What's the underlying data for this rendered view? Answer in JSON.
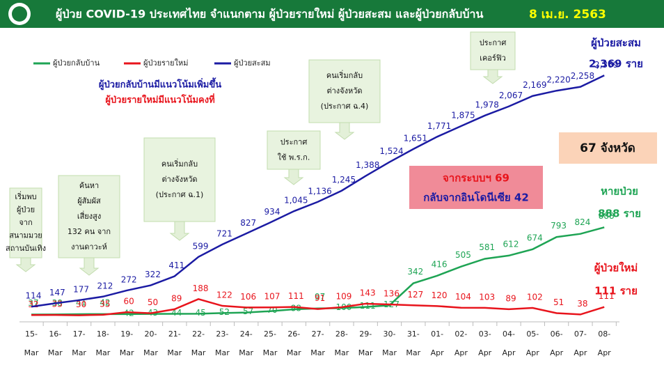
{
  "chart_data": {
    "type": "line",
    "title": "ผู้ป่วย COVID-19 ประเทศไทย จำแนกตาม ผู้ป่วยรายใหม่ ผู้ป่วยสะสม  และผู้ป่วยกลับบ้าน",
    "date": "8 เม.ย. 2563",
    "categories": [
      "15-Mar",
      "16-Mar",
      "17-Mar",
      "18-Mar",
      "19-Mar",
      "20-Mar",
      "21-Mar",
      "22-Mar",
      "23-Mar",
      "24-Mar",
      "25-Mar",
      "26-Mar",
      "27-Mar",
      "28-Mar",
      "29-Mar",
      "30-Mar",
      "31-Mar",
      "01-Apr",
      "02-Apr",
      "03-Apr",
      "04-Apr",
      "05-Apr",
      "06-Apr",
      "07-Apr",
      "08-Apr"
    ],
    "series": [
      {
        "name": "ผู้ป่วยกลับบ้าน",
        "color": "#1ea454",
        "values": [
          37,
          38,
          41,
          42,
          42,
          43,
          44,
          45,
          52,
          57,
          70,
          88,
          97,
          100,
          111,
          127,
          342,
          416,
          505,
          581,
          612,
          674,
          793,
          824,
          888
        ]
      },
      {
        "name": "ผู้ป่วยรายใหม่",
        "color": "#e8141c",
        "values": [
          32,
          33,
          30,
          35,
          60,
          50,
          89,
          188,
          122,
          106,
          107,
          111,
          91,
          109,
          143,
          136,
          127,
          120,
          104,
          103,
          89,
          102,
          51,
          38,
          111
        ]
      },
      {
        "name": "ผู้ป่วยสะสม",
        "color": "#1b1ba3",
        "values": [
          114,
          147,
          177,
          212,
          272,
          322,
          411,
          599,
          721,
          827,
          934,
          1045,
          1136,
          1245,
          1388,
          1524,
          1651,
          1771,
          1875,
          1978,
          2067,
          2169,
          2220,
          2258,
          2369
        ],
        "value_labels": [
          "114",
          "147",
          "177",
          "212",
          "272",
          "322",
          "411",
          "599",
          "721",
          "827",
          "934",
          "1,045",
          "1,136",
          "1,245",
          "1,388",
          "1,524",
          "1,651",
          "1,771",
          "1,875",
          "1,978",
          "2,067",
          "2,169",
          "2,220",
          "2,258",
          "2,369"
        ]
      }
    ],
    "ylim": [
      0,
      2500
    ],
    "notes": [
      "ผู้ป่วยกลับบ้านมีแนวโน้มเพิ่มขึ้น",
      "ผู้ป่วยรายใหม่มีแนวโน้มคงที่"
    ],
    "callouts": [
      {
        "lines": [
          "เริ่มพบ",
          "ผู้ป่วย",
          "จาก",
          "สนามมวย",
          "สถานบันเทิง"
        ]
      },
      {
        "lines": [
          "ค้นหา",
          "ผู้สัมผัส",
          "เสี่ยงสูง",
          "132 คน จาก",
          "งานดาวะห์"
        ]
      },
      {
        "lines": [
          "คนเริ่มกลับ",
          "ต่างจังหวัด",
          "(ประกาศ ฉ.1)"
        ]
      },
      {
        "lines": [
          "ประกาศ",
          "ใช้ พ.ร.ก."
        ]
      },
      {
        "lines": [
          "คนเริ่มกลับ",
          "ต่างจังหวัด",
          "(ประกาศ ฉ.4)"
        ]
      },
      {
        "lines": [
          "ประกาศ",
          "เคอร์ฟิว"
        ]
      }
    ],
    "summary": {
      "total": [
        "ผู้ป่วยสะสม",
        "2,369 ราย"
      ],
      "recovered": [
        "หายป่วย",
        "888 ราย"
      ],
      "new": [
        "ผู้ป่วยใหม่",
        "111 ราย"
      ],
      "provinces": "67 จังหวัด",
      "sources": [
        "จากระบบฯ 69",
        "กลับจากอินโดนีเซีย 42"
      ]
    }
  }
}
